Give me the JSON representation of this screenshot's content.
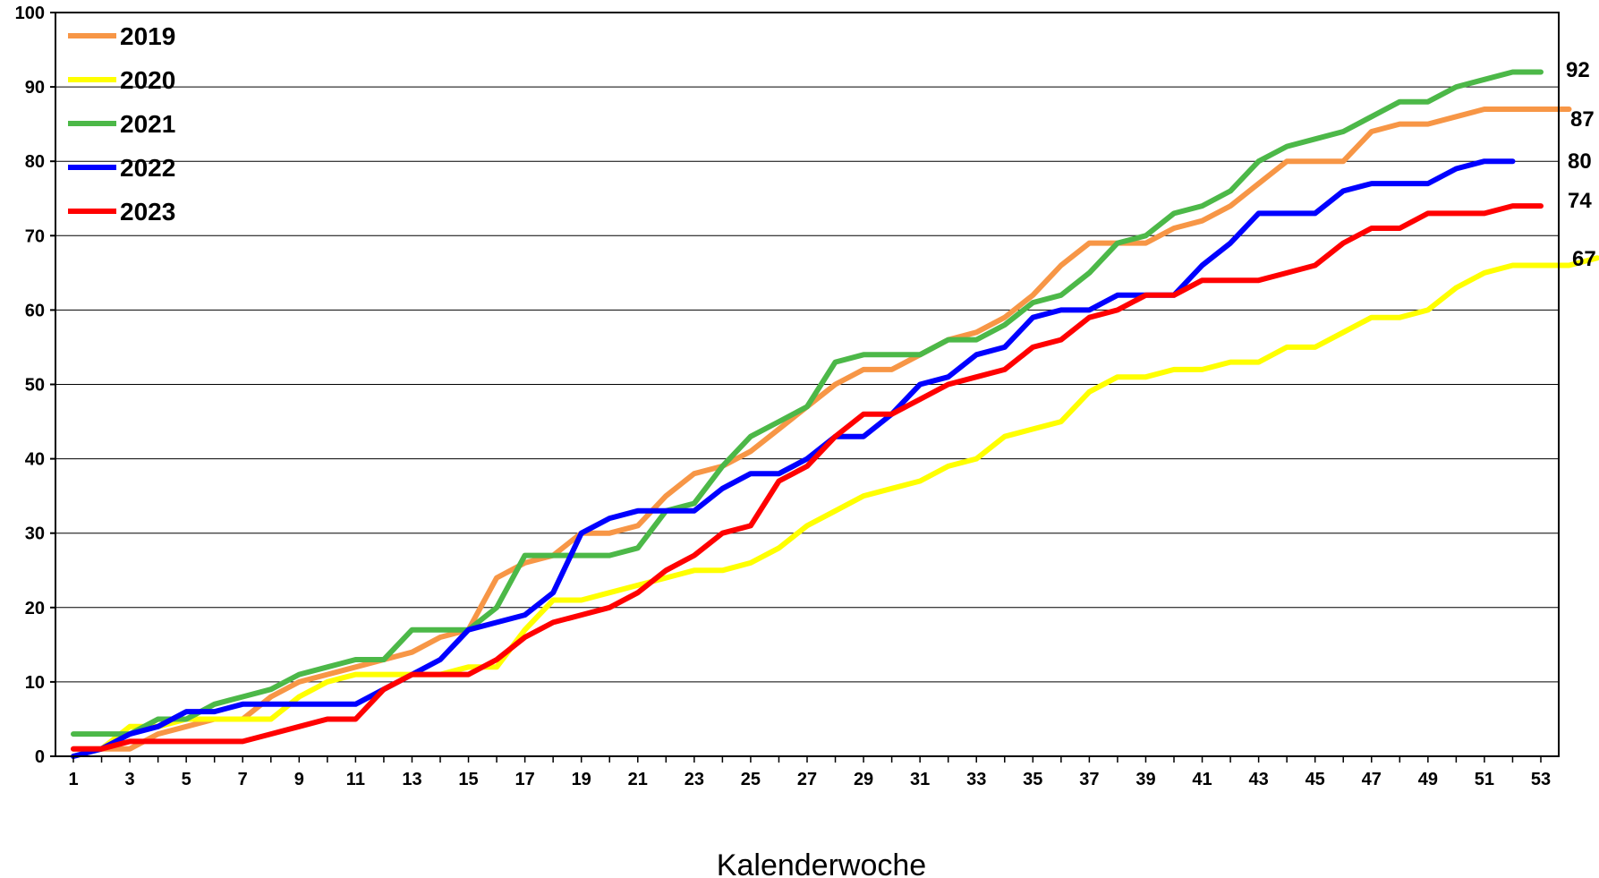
{
  "chart_data": {
    "type": "line",
    "title": "",
    "xlabel": "Kalenderwoche",
    "ylabel": "",
    "xlim": [
      1,
      53
    ],
    "ylim": [
      0,
      100
    ],
    "y_ticks": [
      0,
      10,
      20,
      30,
      40,
      50,
      60,
      70,
      80,
      90,
      100
    ],
    "x_tick_labels": [
      1,
      3,
      5,
      7,
      9,
      11,
      13,
      15,
      17,
      19,
      21,
      23,
      25,
      27,
      29,
      31,
      33,
      35,
      37,
      39,
      41,
      43,
      45,
      47,
      49,
      51,
      53
    ],
    "grid": true,
    "legend_position": "top-left",
    "series": [
      {
        "name": "2019",
        "color": "#F79646",
        "values": [
          1,
          1,
          1,
          3,
          4,
          5,
          5,
          8,
          10,
          11,
          12,
          13,
          14,
          16,
          17,
          24,
          26,
          27,
          30,
          30,
          31,
          35,
          38,
          39,
          41,
          44,
          47,
          50,
          52,
          52,
          54,
          56,
          57,
          59,
          62,
          66,
          69,
          69,
          69,
          71,
          72,
          74,
          77,
          80,
          80,
          80,
          84,
          85,
          85,
          86,
          87,
          87,
          87,
          87
        ]
      },
      {
        "name": "2020",
        "color": "#FFFF00",
        "values": [
          0,
          1,
          4,
          4,
          5,
          5,
          5,
          5,
          8,
          10,
          11,
          11,
          11,
          11,
          12,
          12,
          17,
          21,
          21,
          22,
          23,
          24,
          25,
          25,
          26,
          28,
          31,
          33,
          35,
          36,
          37,
          39,
          40,
          43,
          44,
          45,
          49,
          51,
          51,
          52,
          52,
          53,
          53,
          55,
          55,
          57,
          59,
          59,
          60,
          63,
          65,
          66,
          66,
          66,
          67
        ]
      },
      {
        "name": "2021",
        "color": "#4CB848",
        "values": [
          3,
          3,
          3,
          5,
          5,
          7,
          8,
          9,
          11,
          12,
          13,
          13,
          17,
          17,
          17,
          20,
          27,
          27,
          27,
          27,
          28,
          33,
          34,
          39,
          43,
          45,
          47,
          53,
          54,
          54,
          54,
          56,
          56,
          58,
          61,
          62,
          65,
          69,
          70,
          73,
          74,
          76,
          80,
          82,
          83,
          84,
          86,
          88,
          88,
          90,
          91,
          92,
          92
        ]
      },
      {
        "name": "2022",
        "color": "#0000FF",
        "values": [
          0,
          1,
          3,
          4,
          6,
          6,
          7,
          7,
          7,
          7,
          7,
          9,
          11,
          13,
          17,
          18,
          19,
          22,
          30,
          32,
          33,
          33,
          33,
          36,
          38,
          38,
          40,
          43,
          43,
          46,
          50,
          51,
          54,
          55,
          59,
          60,
          60,
          62,
          62,
          62,
          66,
          69,
          73,
          73,
          73,
          76,
          77,
          77,
          77,
          79,
          80,
          80
        ]
      },
      {
        "name": "2023",
        "color": "#FF0000",
        "values": [
          1,
          1,
          2,
          2,
          2,
          2,
          2,
          3,
          4,
          5,
          5,
          9,
          11,
          11,
          11,
          13,
          16,
          18,
          19,
          20,
          22,
          25,
          27,
          30,
          31,
          37,
          39,
          43,
          46,
          46,
          48,
          50,
          51,
          52,
          55,
          56,
          59,
          60,
          62,
          62,
          64,
          64,
          64,
          65,
          66,
          69,
          71,
          71,
          73,
          73,
          73,
          74,
          74
        ]
      }
    ],
    "end_labels": [
      {
        "series": "2021",
        "text": "92"
      },
      {
        "series": "2019",
        "text": "87"
      },
      {
        "series": "2022",
        "text": "80"
      },
      {
        "series": "2023",
        "text": "74"
      },
      {
        "series": "2020",
        "text": "67"
      }
    ]
  }
}
